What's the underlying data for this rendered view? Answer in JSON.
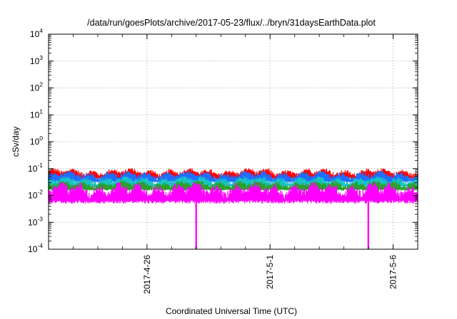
{
  "chart_data": {
    "type": "line",
    "title": "/data/run/goesPlots/archive/2017-05-23/flux/../bryn/31daysEarthData.plot",
    "xlabel": "Coordinated Universal Time (UTC)",
    "ylabel": "cSv/day",
    "yscale": "log",
    "ylim": [
      0.0001,
      10000
    ],
    "xlim": [
      "2017-04-22",
      "2017-05-07"
    ],
    "y_ticks": [
      {
        "base": "10",
        "exp": "-4",
        "value": 0.0001
      },
      {
        "base": "10",
        "exp": "-3",
        "value": 0.001
      },
      {
        "base": "10",
        "exp": "-2",
        "value": 0.01
      },
      {
        "base": "10",
        "exp": "-1",
        "value": 0.1
      },
      {
        "base": "10",
        "exp": "0",
        "value": 1
      },
      {
        "base": "10",
        "exp": "1",
        "value": 10
      },
      {
        "base": "10",
        "exp": "2",
        "value": 100
      },
      {
        "base": "10",
        "exp": "3",
        "value": 1000
      },
      {
        "base": "10",
        "exp": "4",
        "value": 10000
      }
    ],
    "x_ticks": [
      {
        "label": "2017-4-26",
        "date": "2017-04-26"
      },
      {
        "label": "2017-5-1",
        "date": "2017-05-01"
      },
      {
        "label": "2017-5-6",
        "date": "2017-05-06"
      }
    ],
    "grid": true,
    "series": [
      {
        "color": "#ff0000",
        "typical_range": [
          0.04,
          0.1
        ]
      },
      {
        "color": "#1e6fff",
        "typical_range": [
          0.03,
          0.08
        ]
      },
      {
        "color": "#18c4c4",
        "typical_range": [
          0.02,
          0.05
        ]
      },
      {
        "color": "#2ca02c",
        "typical_range": [
          0.015,
          0.035
        ]
      },
      {
        "color": "#ff00ff",
        "typical_range": [
          0.005,
          0.03
        ],
        "dips": [
          {
            "date": "2017-04-28",
            "value": 0.0001
          },
          {
            "date": "2017-05-05",
            "value": 0.0001
          }
        ]
      }
    ]
  }
}
